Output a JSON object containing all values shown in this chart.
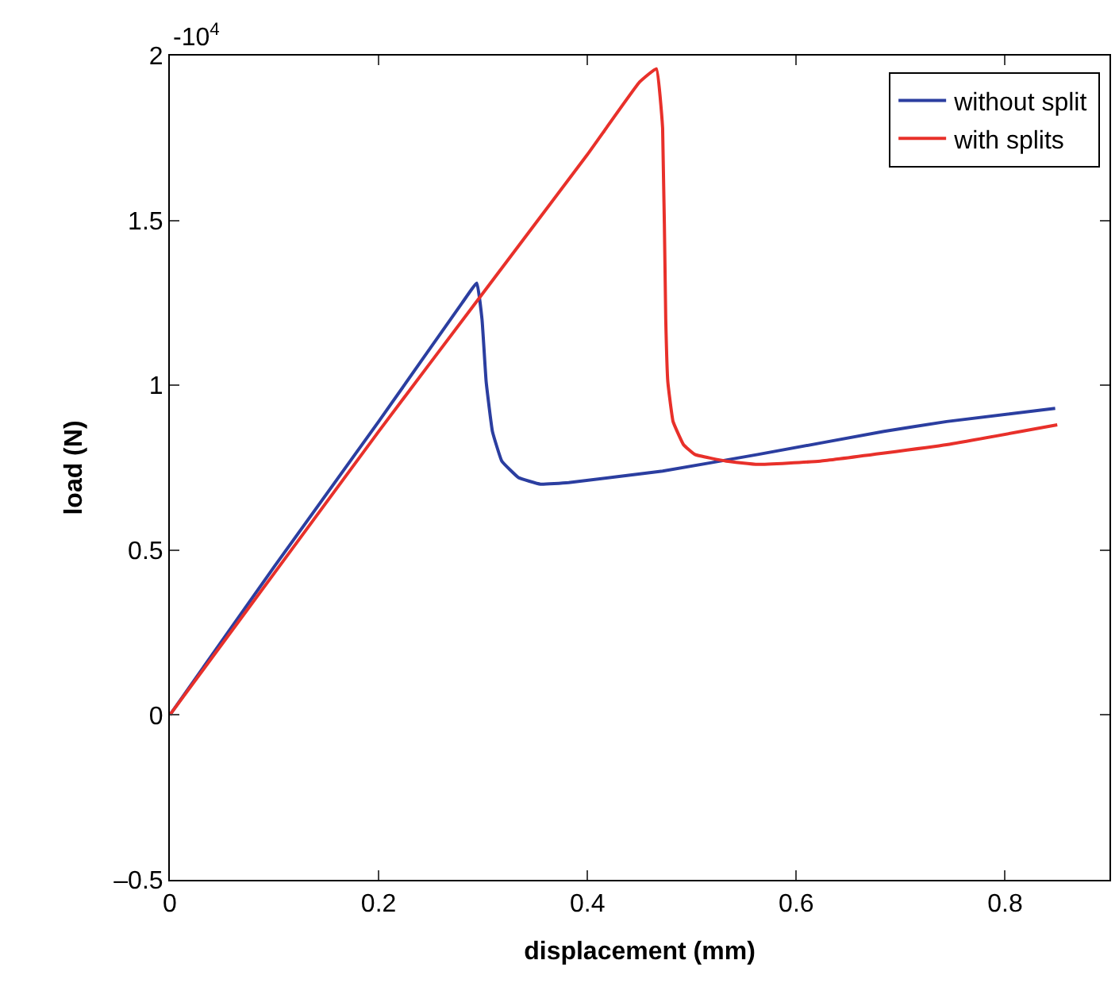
{
  "chart_data": {
    "type": "line",
    "xlabel": "displacement (mm)",
    "ylabel": "load (N)",
    "annotations": [
      "-10$^{4}$"
    ],
    "xlim": [
      0,
      0.9
    ],
    "ylim": [
      -0.5,
      2
    ],
    "xticks": [
      0,
      0.2,
      0.4,
      0.6,
      0.8
    ],
    "yticks": [
      {
        "value": -0.5,
        "label": "–0.5"
      },
      0,
      0.5,
      1,
      1.5,
      2
    ],
    "legend": "top right",
    "marker": "none",
    "line_style": "solid",
    "series": [
      {
        "name": "without split",
        "color": "#2b3ea0",
        "x": [
          0,
          0.1,
          0.2,
          0.28,
          0.294,
          0.299,
          0.303,
          0.309,
          0.318,
          0.334,
          0.355,
          0.382,
          0.472,
          0.563,
          0.684,
          0.744,
          0.848
        ],
        "values": [
          0,
          0.45,
          0.89,
          1.25,
          1.31,
          1.2,
          1.01,
          0.86,
          0.77,
          0.72,
          0.7,
          0.705,
          0.74,
          0.79,
          0.86,
          0.89,
          0.93
        ]
      },
      {
        "name": "with splits",
        "color": "#e8302a",
        "x": [
          0,
          0.1,
          0.2,
          0.3,
          0.4,
          0.45,
          0.466,
          0.472,
          0.475,
          0.477,
          0.482,
          0.492,
          0.503,
          0.533,
          0.563,
          0.623,
          0.744,
          0.85
        ],
        "values": [
          0,
          0.43,
          0.86,
          1.28,
          1.7,
          1.92,
          1.96,
          1.78,
          1.2,
          1.01,
          0.89,
          0.82,
          0.79,
          0.77,
          0.76,
          0.77,
          0.82,
          0.88
        ]
      }
    ]
  }
}
